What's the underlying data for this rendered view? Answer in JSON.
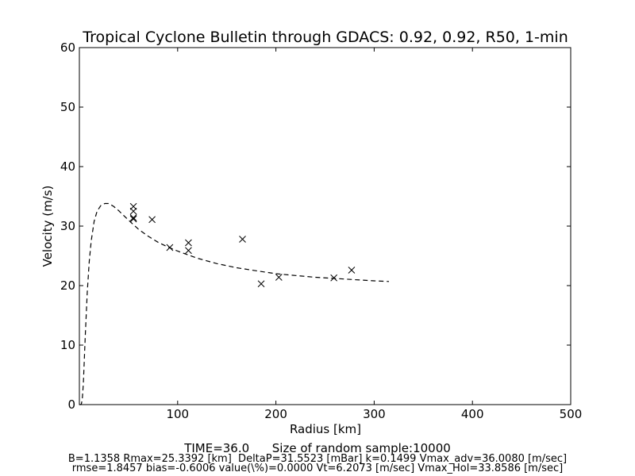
{
  "chart_data": {
    "type": "scatter",
    "title": "Tropical Cyclone Bulletin through GDACS: 0.92, 0.92, R50, 1-min",
    "xlabel": "Radius [km]",
    "ylabel": "Velocity (m/s)",
    "xlim": [
      0,
      500
    ],
    "ylim": [
      0,
      60
    ],
    "x_ticks": [
      100,
      200,
      300,
      400,
      500
    ],
    "y_ticks": [
      0,
      10,
      20,
      30,
      40,
      50,
      60
    ],
    "grid": false,
    "legend": "none",
    "series": [
      {
        "kind": "points",
        "marker": "x",
        "color": "#000000",
        "x": [
          55,
          55,
          55,
          55,
          74,
          92,
          111,
          111,
          166,
          185,
          203,
          259,
          277
        ],
        "y": [
          33.3,
          32.5,
          31.4,
          31.2,
          31.1,
          26.4,
          27.2,
          25.9,
          27.8,
          20.3,
          21.4,
          21.3,
          22.6
        ]
      },
      {
        "kind": "line",
        "style": "dashed",
        "color": "#000000",
        "x": [
          0,
          1,
          2,
          3,
          4,
          5,
          6,
          8,
          10,
          12,
          15,
          18,
          22,
          26,
          30,
          35,
          40,
          50,
          60,
          70,
          80,
          90,
          100,
          120,
          140,
          160,
          180,
          200,
          220,
          240,
          260,
          280,
          300,
          315
        ],
        "y": [
          0,
          0,
          0.1,
          1.0,
          3.5,
          7.5,
          11.5,
          18.8,
          24.0,
          27.5,
          30.8,
          32.5,
          33.5,
          33.8,
          33.8,
          33.3,
          32.6,
          31.0,
          29.5,
          28.3,
          27.3,
          26.5,
          25.8,
          24.6,
          23.7,
          23.0,
          22.5,
          22.0,
          21.7,
          21.4,
          21.2,
          21.0,
          20.8,
          20.7
        ]
      }
    ]
  },
  "footer": {
    "line1": "TIME=36.0      Size of random sample:10000",
    "line2": "B=1.1358 Rmax=25.3392 [km]  DeltaP=31.5523 [mBar] k=0.1499 Vmax_adv=36.0080 [m/sec]",
    "line3": "rmse=1.8457 bias=-0.6006 value(\\%)=0.0000 Vt=6.2073 [m/sec] Vmax_Hol=33.8586 [m/sec]"
  }
}
